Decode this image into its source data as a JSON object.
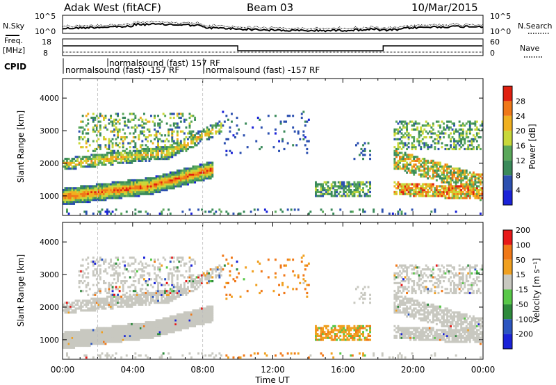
{
  "header": {
    "station": "Adak West (fitACF)",
    "beam": "Beam 03",
    "date": "10/Mar/2015"
  },
  "top_panels": {
    "nsky_label": "N.Sky",
    "nsearch_label": "N.Search",
    "noise_ticks": [
      "10^5",
      "10^0"
    ],
    "freq_label": "Freq.",
    "freq_unit": "[MHz]",
    "freq_ticks": [
      "18",
      "8"
    ],
    "nave_label": "Nave",
    "nave_ticks": [
      "60",
      "0"
    ],
    "cpid_label": "CPID",
    "cpid_entries": [
      "normalsound (fast) 157 RF",
      "normalsound (fast) -157 RF",
      "normalsound (fast) -157 RF"
    ]
  },
  "colors": {
    "power": [
      "#1a22d8",
      "#2c50b0",
      "#3a8a5a",
      "#5aa85a",
      "#c8d83a",
      "#f0b020",
      "#f07818",
      "#e02010"
    ],
    "velocity": [
      "#1a22d8",
      "#2c55c0",
      "#2e8a3c",
      "#58c848",
      "#c8c8c0",
      "#f0a020",
      "#f07818",
      "#e81818"
    ]
  },
  "chart_data": [
    {
      "type": "heatmap",
      "panel": "power",
      "ylabel": "Slant Range [km]",
      "ylim": [
        400,
        4600
      ],
      "y_ticks": [
        1000,
        2000,
        3000,
        4000
      ],
      "xlim": [
        0,
        24
      ],
      "x_ticks": [
        "00:00",
        "04:00",
        "08:00",
        "12:00",
        "16:00",
        "20:00",
        "00:00"
      ],
      "colorbar_label": "Power [dB]",
      "colorbar_ticks": [
        "28",
        "24",
        "20",
        "16",
        "12",
        "8",
        "4"
      ],
      "colorbar_range": [
        0,
        32
      ]
    },
    {
      "type": "heatmap",
      "panel": "velocity",
      "ylabel": "Slant Range [km]",
      "ylim": [
        400,
        4600
      ],
      "y_ticks": [
        1000,
        2000,
        3000,
        4000
      ],
      "xlim": [
        0,
        24
      ],
      "x_ticks": [
        "00:00",
        "04:00",
        "08:00",
        "12:00",
        "16:00",
        "20:00",
        "00:00"
      ],
      "xlabel": "Time UT",
      "colorbar_label": "Velocity [m s⁻¹]",
      "colorbar_ticks": [
        "200",
        "100",
        "50",
        "15",
        "-15",
        "-50",
        "-100",
        "-200"
      ],
      "colorbar_range": [
        -250,
        250
      ]
    }
  ]
}
